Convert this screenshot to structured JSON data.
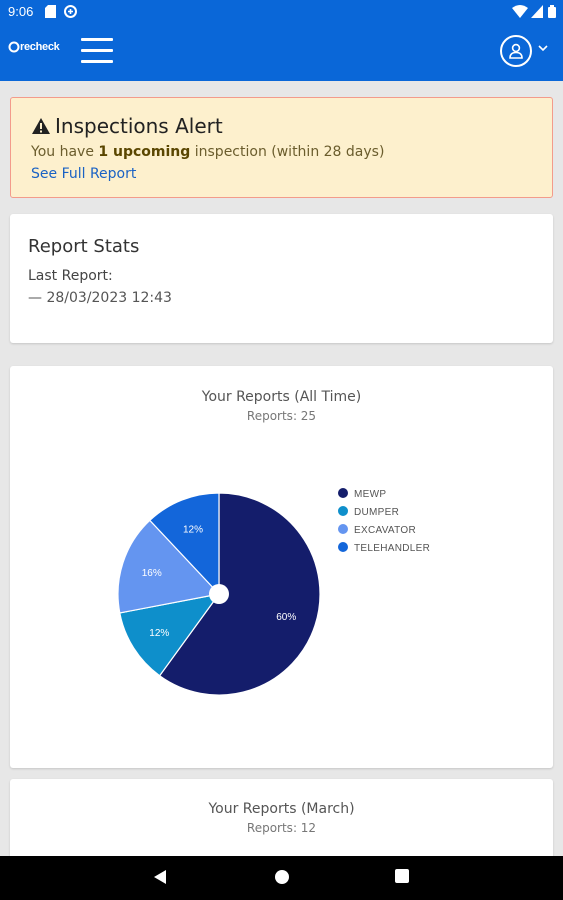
{
  "status_bar": {
    "time": "9:06"
  },
  "header": {
    "logo_text": "recheck"
  },
  "alert": {
    "title": "Inspections Alert",
    "text_before": "You have ",
    "text_bold": "1 upcoming",
    "text_after": " inspection (within 28 days)",
    "link": "See Full Report"
  },
  "report_stats": {
    "title": "Report Stats",
    "last_report_label": "Last Report:",
    "last_report_value": "— 28/03/2023 12:43"
  },
  "colors": {
    "header": "#0a67d8",
    "mewp": "#141d6b",
    "dumper": "#0e8fcb",
    "excavator": "#6495f0",
    "telehandler": "#1366da"
  },
  "chart_all_time": {
    "title": "Your Reports (All Time)",
    "subtitle": "Reports: 25"
  },
  "chart_march": {
    "title": "Your Reports (March)",
    "subtitle": "Reports: 12"
  },
  "chart_data": {
    "type": "pie",
    "categories": [
      "MEWP",
      "DUMPER",
      "EXCAVATOR",
      "TELEHANDLER"
    ],
    "values": [
      60,
      12,
      16,
      12
    ],
    "labels": [
      "60%",
      "12%",
      "16%",
      "12%"
    ],
    "legend_position": "right"
  }
}
